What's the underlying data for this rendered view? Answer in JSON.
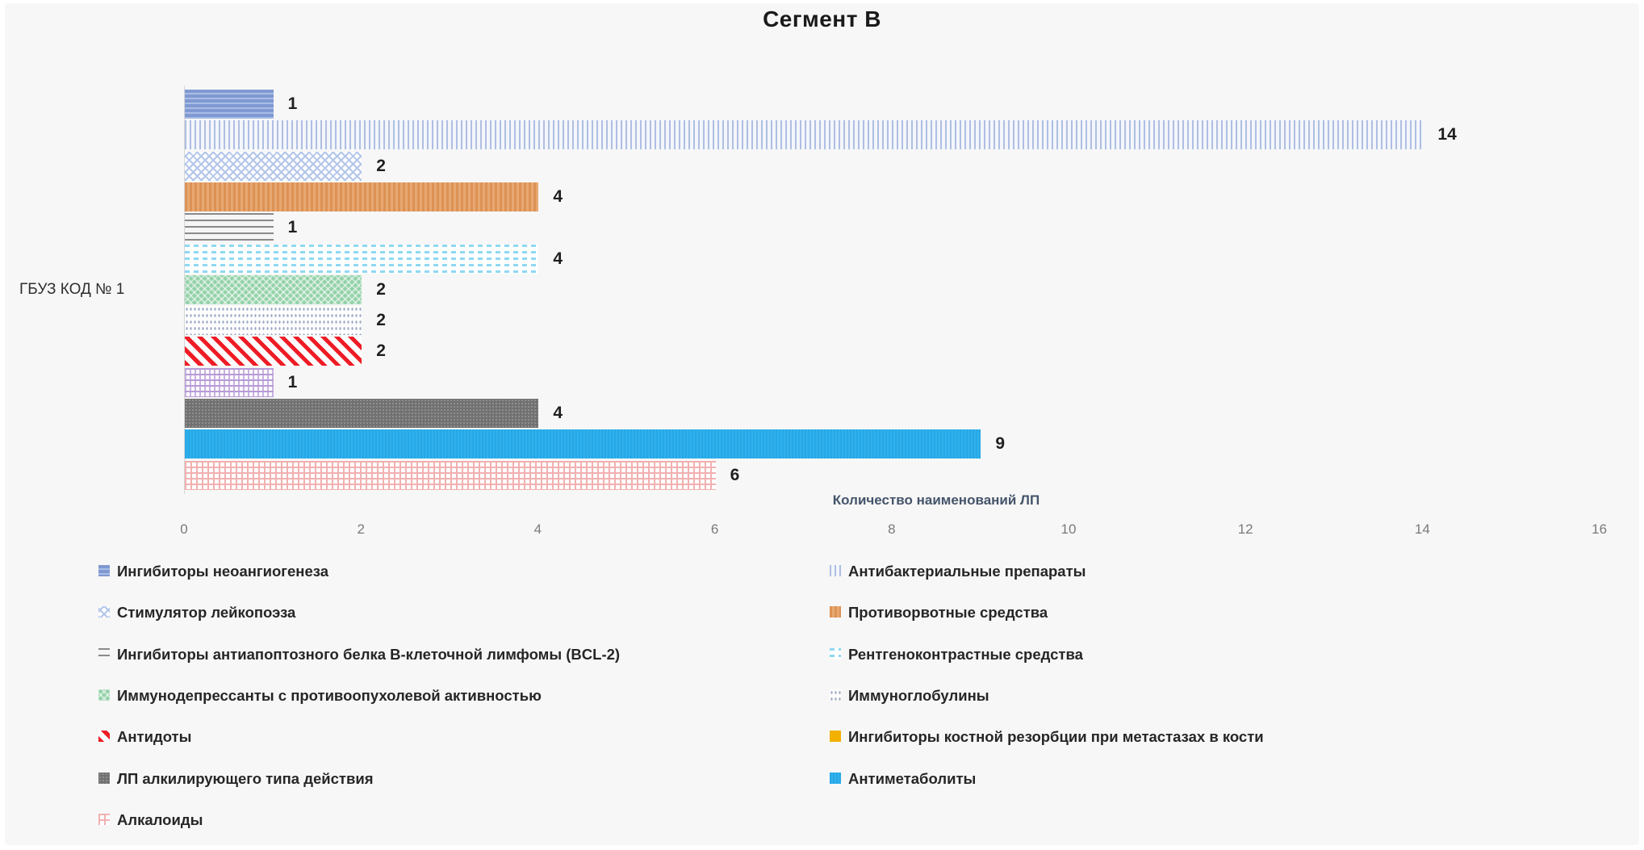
{
  "title": "Сегмент В",
  "category_label": "ГБУЗ КОД № 1",
  "x_axis": {
    "title": "Количество наименований ЛП",
    "ticks": [
      0,
      2,
      4,
      6,
      8,
      10,
      12,
      14,
      16
    ]
  },
  "chart_data": {
    "type": "bar",
    "orientation": "horizontal",
    "title": "Сегмент В",
    "xlabel": "Количество наименований ЛП",
    "categories": [
      "ГБУЗ КОД № 1"
    ],
    "xlim": [
      0,
      16
    ],
    "grid": false,
    "legend_position": "bottom-two-columns",
    "series": [
      {
        "name": "Ингибиторы неоангиогенеза",
        "value": 1,
        "pattern": "p1",
        "color": "#8099d2"
      },
      {
        "name": "Антибактериальные препараты",
        "value": 14,
        "pattern": "p2",
        "color": "#aebfe2"
      },
      {
        "name": "Стимулятор лейкопоэза",
        "value": 2,
        "pattern": "p3",
        "color": "#b3c6ea"
      },
      {
        "name": "Противорвотные средства",
        "value": 4,
        "pattern": "p4",
        "color": "#e09a5f"
      },
      {
        "name": "Ингибиторы антиапоптозного белка B-клеточной лимфомы (BCL-2)",
        "value": 1,
        "pattern": "p5",
        "color": "#8a8a8a"
      },
      {
        "name": "Рентгеноконтрастные средства",
        "value": 4,
        "pattern": "p6",
        "color": "#8fd8f2"
      },
      {
        "name": "Иммунодепрессанты с противоопухолевой активностью",
        "value": 2,
        "pattern": "p7",
        "color": "#93d1a8"
      },
      {
        "name": "Иммуноглобулины",
        "value": 2,
        "pattern": "p8",
        "color": "#9aa6c4"
      },
      {
        "name": "Антидоты",
        "value": 2,
        "pattern": "p9",
        "color": "#ee1c25"
      },
      {
        "name": "Ингибиторы костной резорбции при метастазах в кости",
        "value": 1,
        "pattern": "p10",
        "color": "#b79bd6",
        "legend_swatch": "#f2b100"
      },
      {
        "name": "ЛП алкилирующего типа действия",
        "value": 4,
        "pattern": "p11",
        "color": "#717171"
      },
      {
        "name": "Антиметаболиты",
        "value": 9,
        "pattern": "p12",
        "color": "#29abe8"
      },
      {
        "name": "Алкалоиды",
        "value": 6,
        "pattern": "p13",
        "color": "#f2b0b0"
      }
    ]
  }
}
